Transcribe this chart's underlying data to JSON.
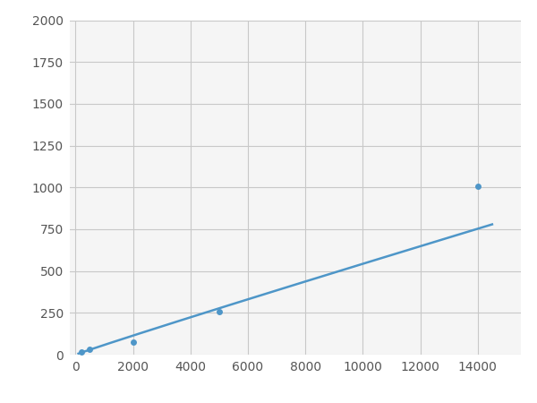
{
  "x_points": [
    200,
    500,
    2000,
    5000,
    14000
  ],
  "y_points": [
    15,
    30,
    75,
    255,
    1005
  ],
  "line_color": "#4e96c8",
  "marker_color": "#4e96c8",
  "marker_size": 5,
  "xlim": [
    -200,
    15500
  ],
  "ylim": [
    0,
    2000
  ],
  "xticks": [
    0,
    2000,
    4000,
    6000,
    8000,
    10000,
    12000,
    14000
  ],
  "yticks": [
    0,
    250,
    500,
    750,
    1000,
    1250,
    1500,
    1750,
    2000
  ],
  "grid_color": "#c8c8c8",
  "background_color": "#f5f5f5",
  "fig_bg_color": "#ffffff"
}
